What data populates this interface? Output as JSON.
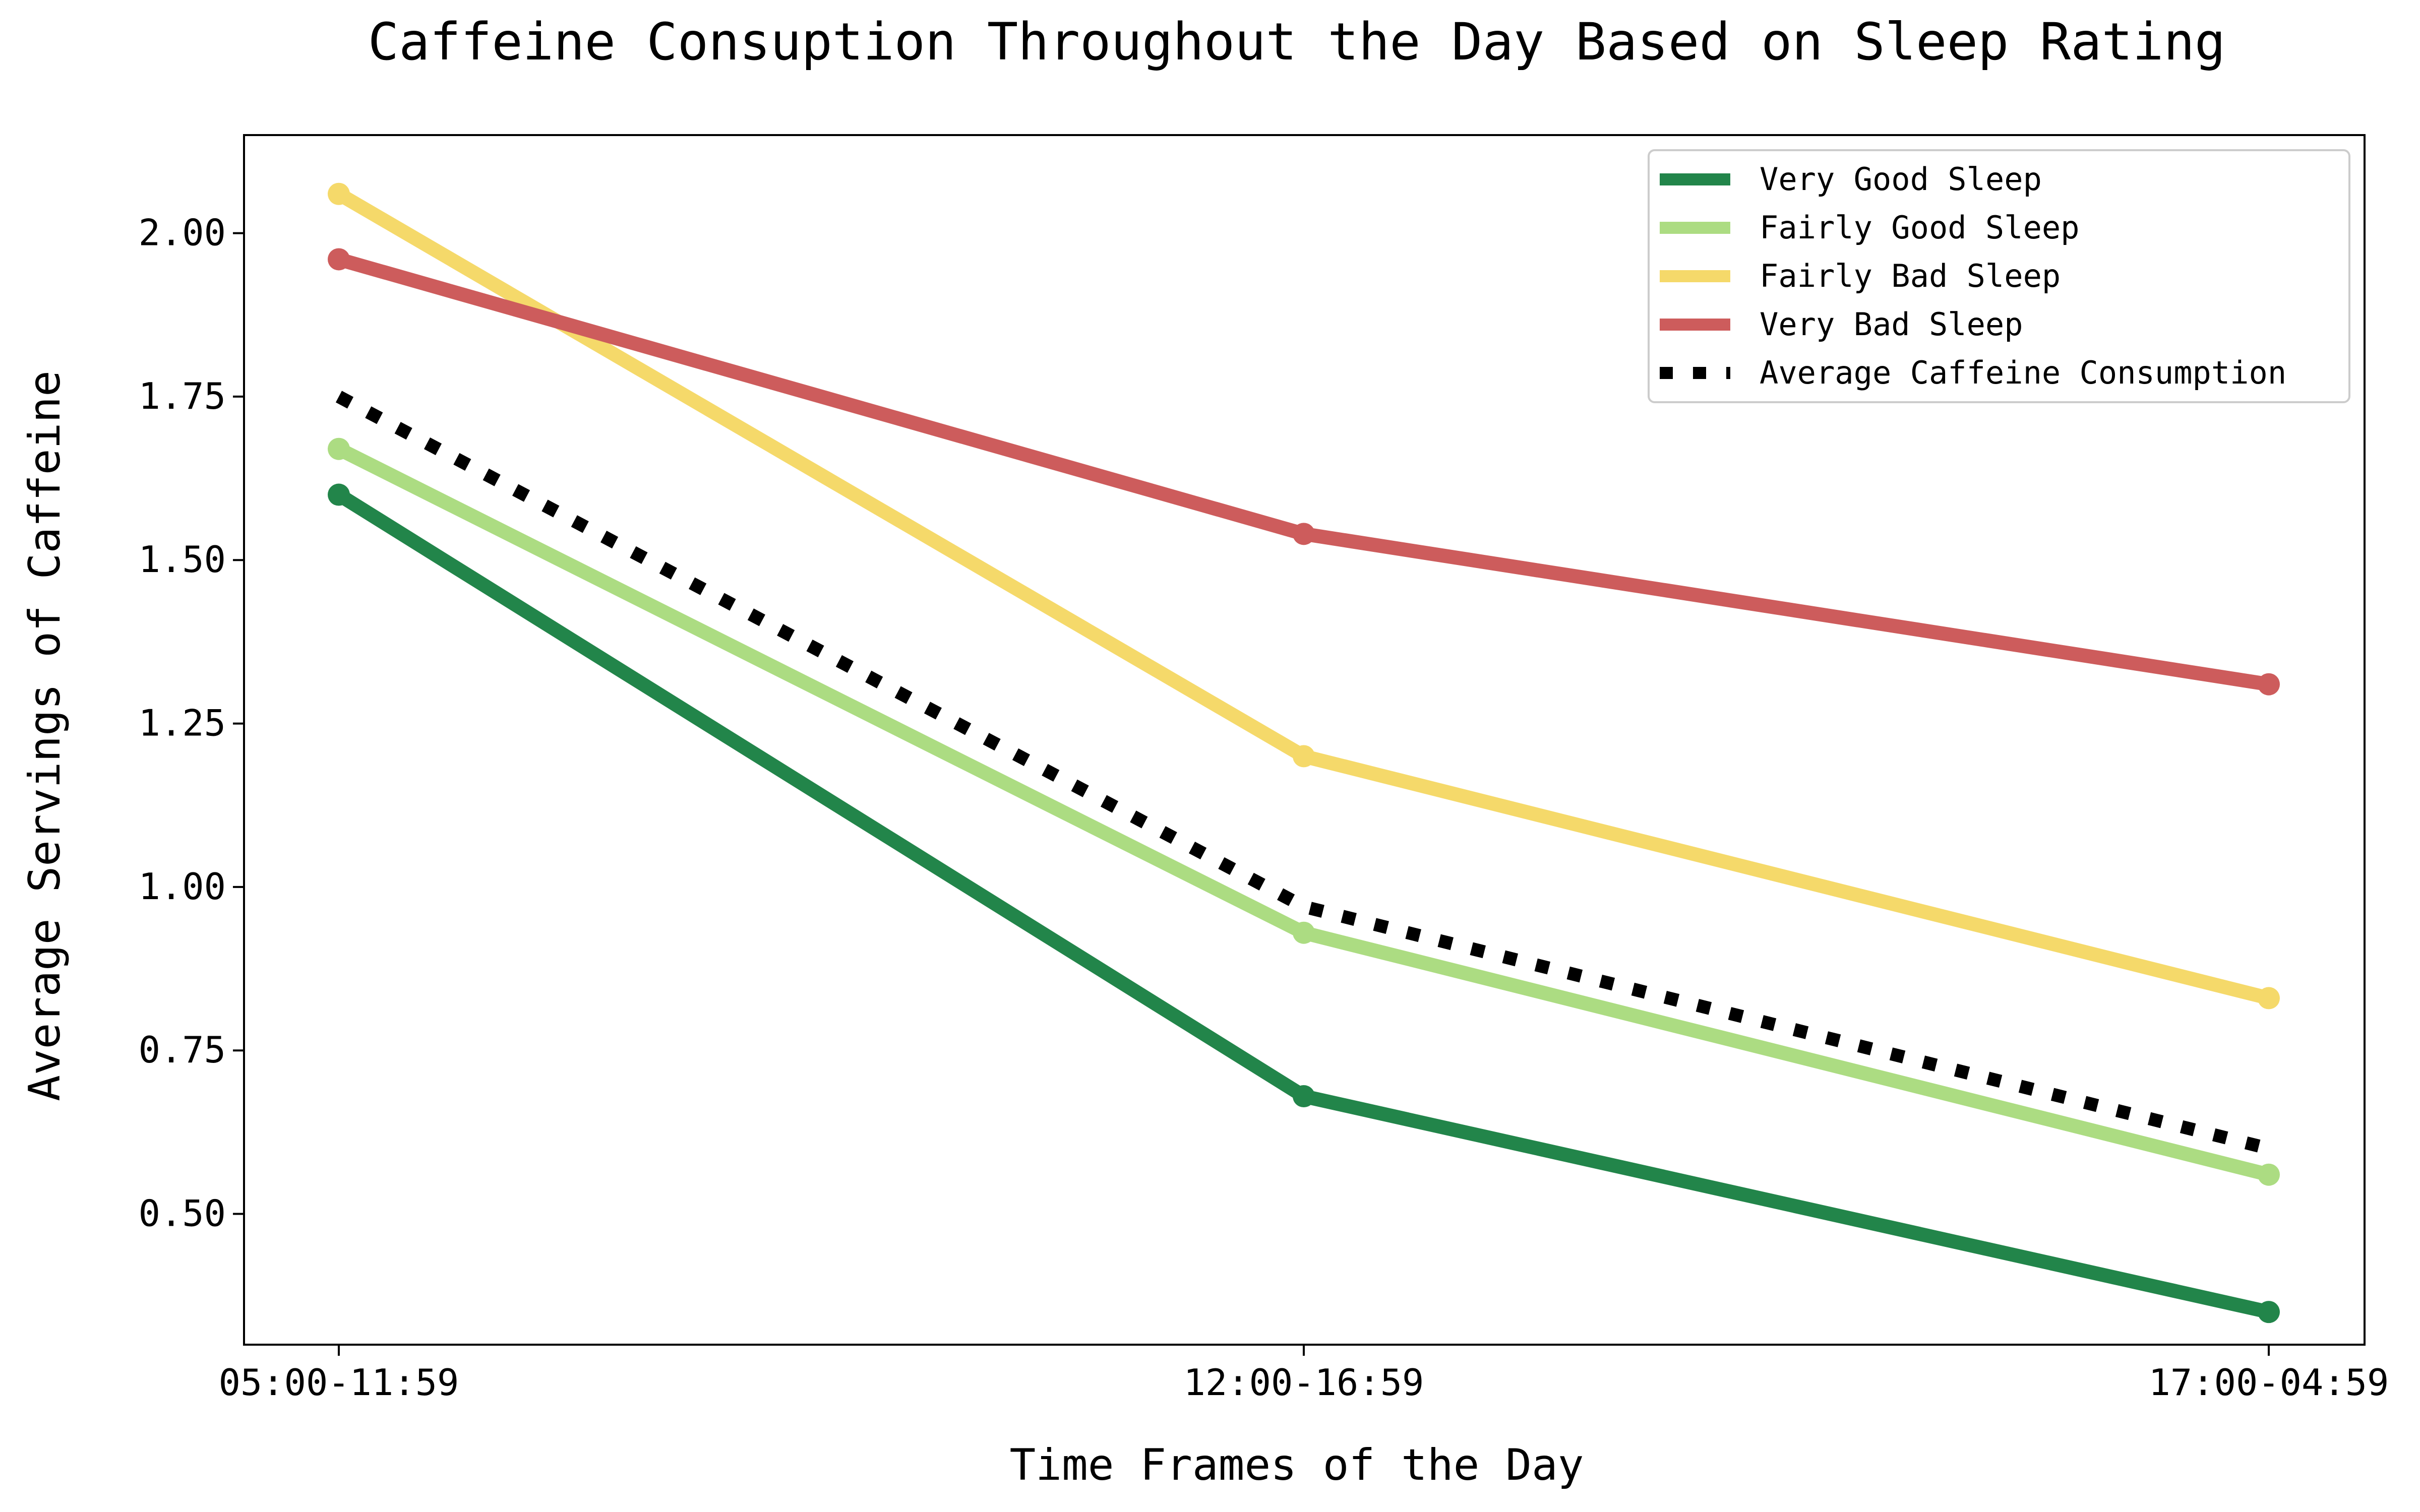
{
  "chart_data": {
    "type": "line",
    "title": "Caffeine Consuption Throughout the Day Based on Sleep Rating",
    "xlabel": "Time Frames of the Day",
    "ylabel": "Average Servings of Caffeine",
    "categories": [
      "05:00-11:59",
      "12:00-16:59",
      "17:00-04:59"
    ],
    "ylim": [
      0.3,
      2.15
    ],
    "yticks": [
      0.5,
      0.75,
      1.0,
      1.25,
      1.5,
      1.75,
      2.0
    ],
    "ytick_labels": [
      "0.50",
      "0.75",
      "1.00",
      "1.25",
      "1.50",
      "1.75",
      "2.00"
    ],
    "grid": false,
    "legend_position": "top-right",
    "series": [
      {
        "name": "Very Good Sleep",
        "color": "#22854a",
        "style": "solid",
        "markers": true,
        "values": [
          1.6,
          0.68,
          0.35
        ]
      },
      {
        "name": "Fairly Good Sleep",
        "color": "#acdc82",
        "style": "solid",
        "markers": true,
        "values": [
          1.67,
          0.93,
          0.56
        ]
      },
      {
        "name": "Fairly Bad Sleep",
        "color": "#f5d96a",
        "style": "solid",
        "markers": true,
        "values": [
          2.06,
          1.2,
          0.83
        ]
      },
      {
        "name": "Very Bad Sleep",
        "color": "#cd5c5c",
        "style": "solid",
        "markers": true,
        "values": [
          1.96,
          1.54,
          1.31
        ]
      },
      {
        "name": "Average Caffeine Consumption",
        "color": "#000000",
        "style": "dotted",
        "markers": false,
        "values": [
          1.75,
          0.97,
          0.6
        ]
      }
    ]
  }
}
